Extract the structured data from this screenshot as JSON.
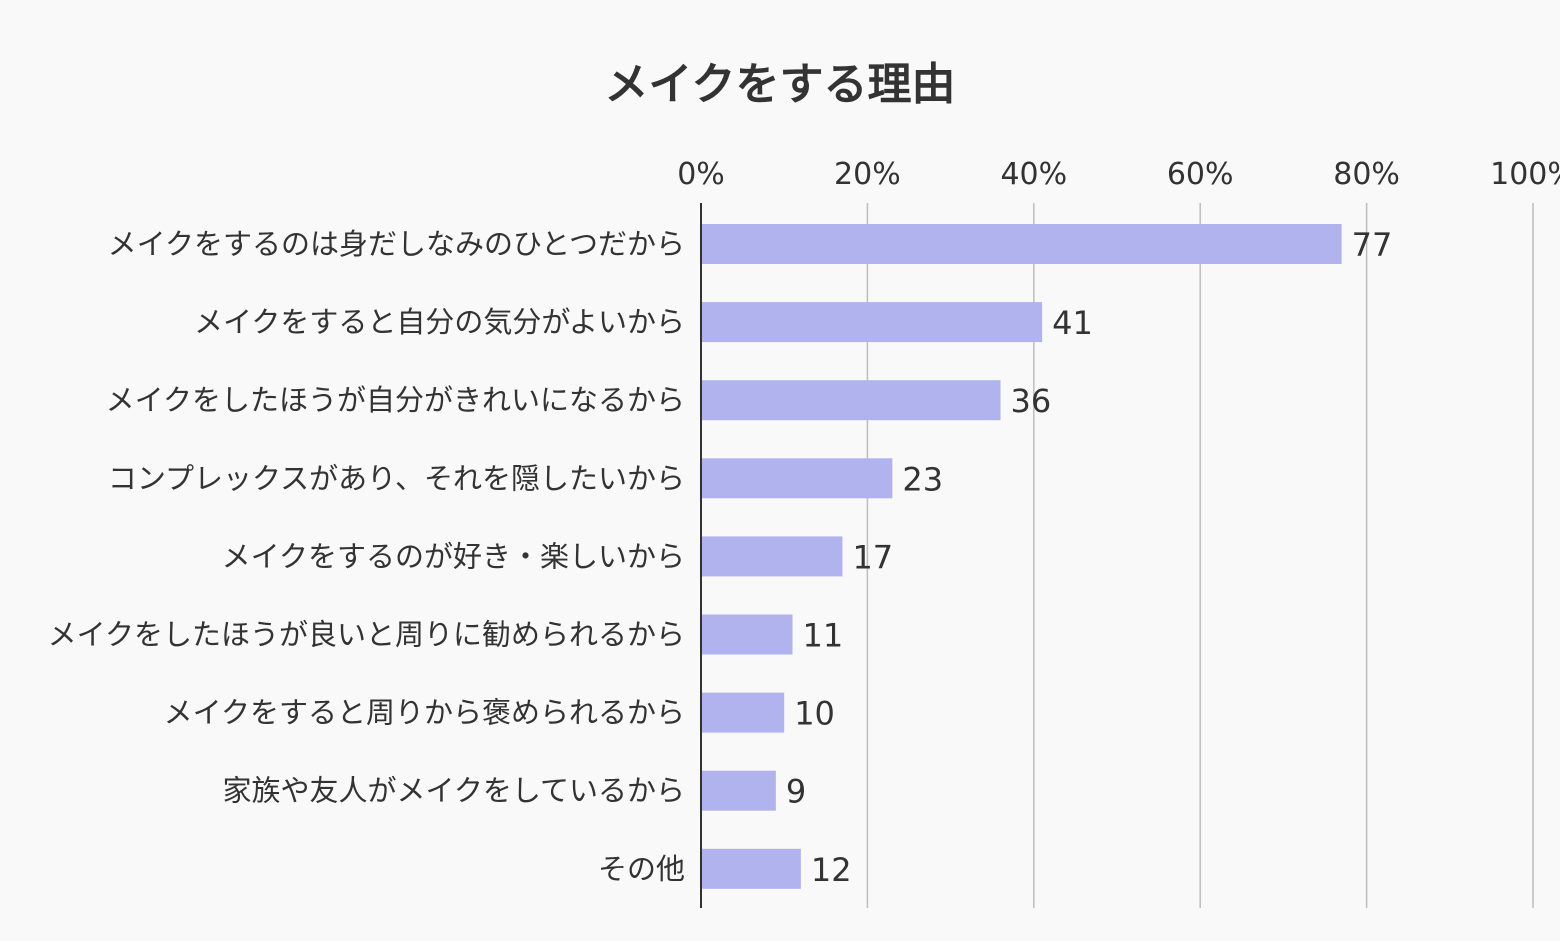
{
  "chart_data": {
    "type": "bar",
    "orientation": "horizontal",
    "title": "メイクをする理由",
    "xlabel": "",
    "ylabel": "",
    "xlim": [
      0,
      100
    ],
    "x_ticks": [
      "0%",
      "20%",
      "40%",
      "60%",
      "80%",
      "100%"
    ],
    "grid": "vertical",
    "legend": "none",
    "categories": [
      "メイクをするのは身だしなみのひとつだから",
      "メイクをすると自分の気分がよいから",
      "メイクをしたほうが自分がきれいになるから",
      "コンプレックスがあり、それを隠したいから",
      "メイクをするのが好き・楽しいから",
      "メイクをしたほうが良いと周りに勧められるから",
      "メイクをすると周りから褒められるから",
      "家族や友人がメイクをしているから",
      "その他"
    ],
    "values": [
      77,
      41,
      36,
      23,
      17,
      11,
      10,
      9,
      12
    ],
    "data_labels": [
      "77",
      "41",
      "36",
      "23",
      "17",
      "11",
      "10",
      "9",
      "12"
    ],
    "colors": {
      "bar": "#b1b3ee",
      "grid": "#bdbdbd",
      "axis": "#333333",
      "background": "#f9f9f9",
      "text": "#333333"
    }
  }
}
